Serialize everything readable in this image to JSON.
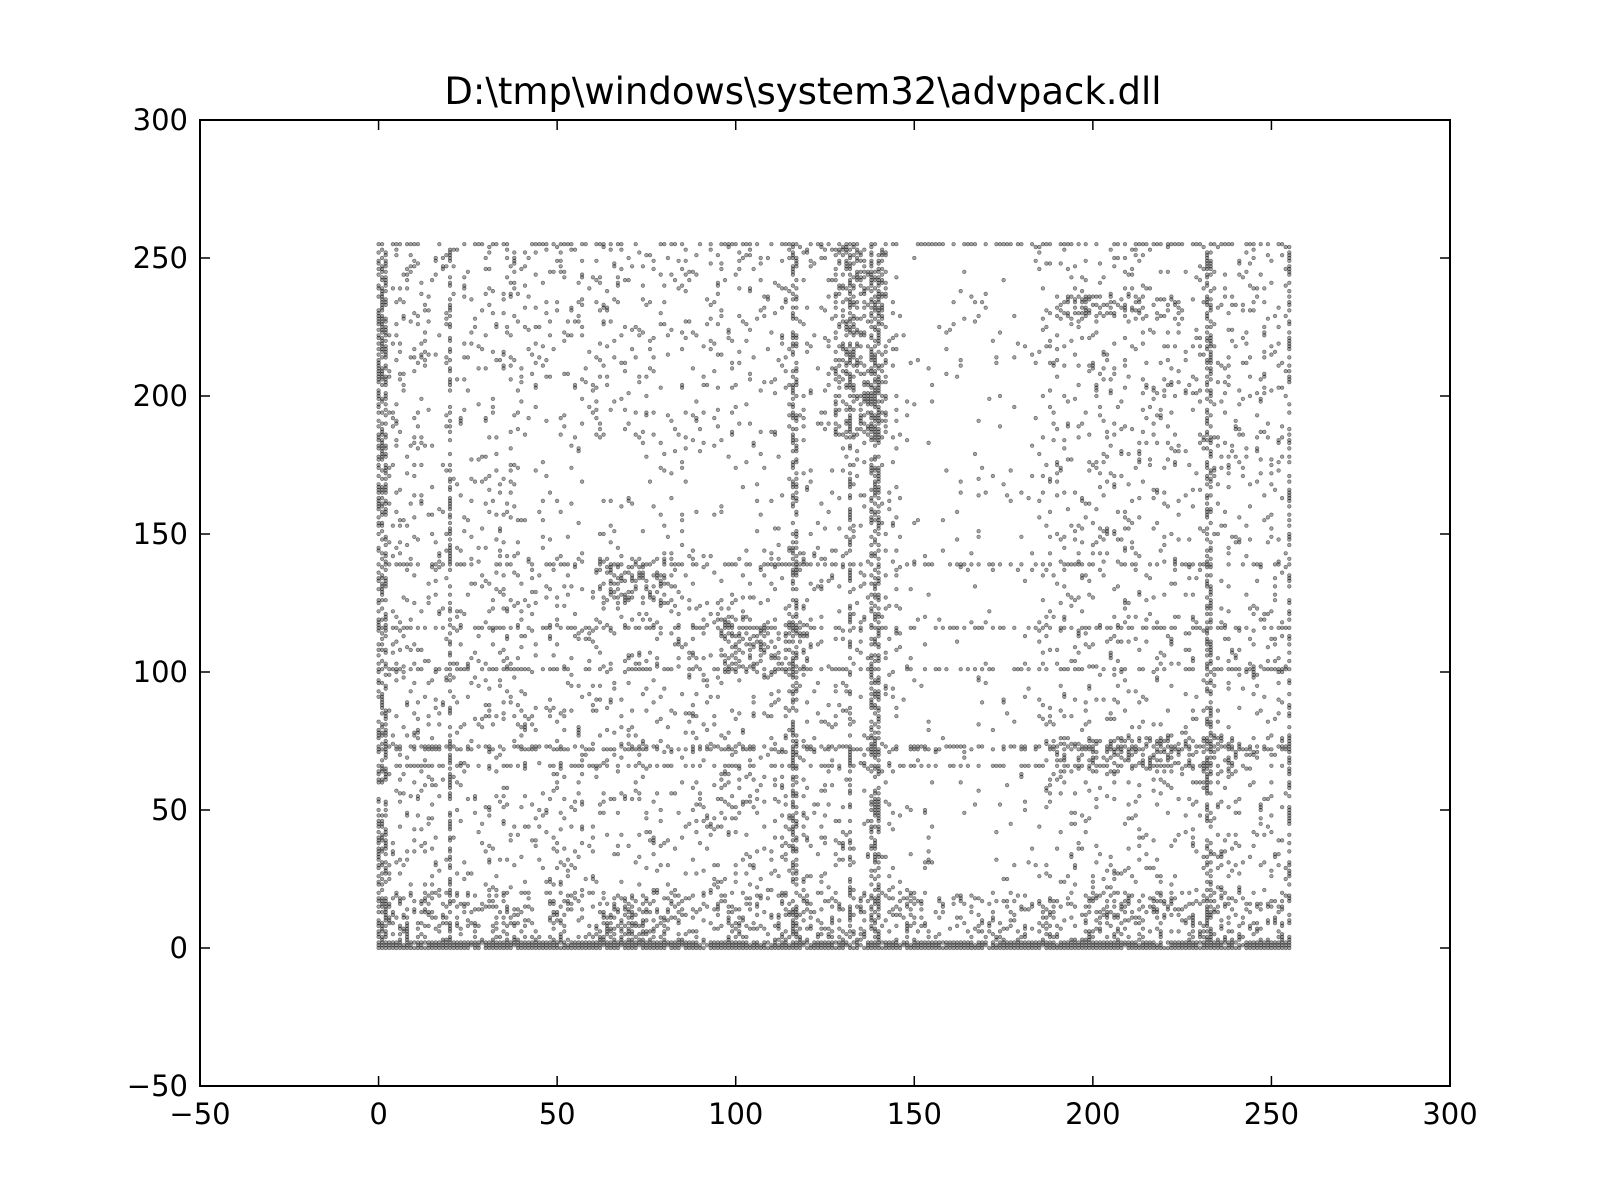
{
  "chart_data": {
    "type": "scatter",
    "title": "D:\\tmp\\windows\\system32\\advpack.dll",
    "xlabel": "",
    "ylabel": "",
    "xlim": [
      -50,
      300
    ],
    "ylim": [
      -50,
      300
    ],
    "x_ticks": [
      -50,
      0,
      50,
      100,
      150,
      200,
      250,
      300
    ],
    "y_ticks": [
      -50,
      0,
      50,
      100,
      150,
      200,
      250,
      300
    ],
    "x_tick_labels": [
      "−50",
      "0",
      "50",
      "100",
      "150",
      "200",
      "250",
      "300"
    ],
    "y_tick_labels": [
      "−50",
      "0",
      "50",
      "100",
      "150",
      "200",
      "250",
      "300"
    ],
    "grid": false,
    "legend": "none",
    "marker_color": "#000000",
    "marker_alpha": 0.35,
    "data_domain": {
      "x": [
        0,
        255
      ],
      "y": [
        0,
        255
      ]
    },
    "dense_rows_y": [
      0,
      1,
      2,
      66,
      72,
      73,
      101,
      116,
      139,
      255
    ],
    "dense_columns_x": [
      0,
      1,
      2,
      20,
      116,
      117,
      132,
      138,
      139,
      140,
      232,
      233,
      255
    ],
    "dense_clusters": [
      {
        "x": [
          62,
          80
        ],
        "y": [
          125,
          142
        ]
      },
      {
        "x": [
          96,
          120
        ],
        "y": [
          98,
          120
        ]
      },
      {
        "x": [
          62,
          80
        ],
        "y": [
          0,
          16
        ]
      },
      {
        "x": [
          190,
          240
        ],
        "y": [
          64,
          76
        ]
      },
      {
        "x": [
          190,
          225
        ],
        "y": [
          228,
          236
        ]
      },
      {
        "x": [
          128,
          142
        ],
        "y": [
          185,
          255
        ]
      }
    ],
    "sparse_region_density": 0.1
  }
}
